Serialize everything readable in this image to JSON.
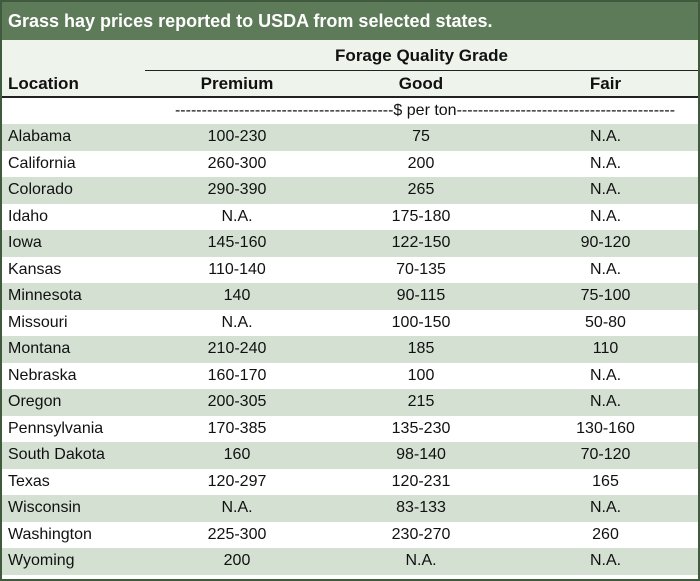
{
  "title": "Grass hay prices reported to USDA from selected states.",
  "header": {
    "group_label": "Forage Quality Grade",
    "location_label": "Location",
    "columns": [
      "Premium",
      "Good",
      "Fair"
    ],
    "units": "-----------------------------------------$ per ton-----------------------------------------"
  },
  "rows": [
    {
      "location": "Alabama",
      "premium": "100-230",
      "good": "75",
      "fair": "N.A."
    },
    {
      "location": "California",
      "premium": "260-300",
      "good": "200",
      "fair": "N.A."
    },
    {
      "location": "Colorado",
      "premium": "290-390",
      "good": "265",
      "fair": "N.A."
    },
    {
      "location": "Idaho",
      "premium": "N.A.",
      "good": "175-180",
      "fair": "N.A."
    },
    {
      "location": "Iowa",
      "premium": "145-160",
      "good": "122-150",
      "fair": "90-120"
    },
    {
      "location": "Kansas",
      "premium": "110-140",
      "good": "70-135",
      "fair": "N.A."
    },
    {
      "location": "Minnesota",
      "premium": "140",
      "good": "90-115",
      "fair": "75-100"
    },
    {
      "location": "Missouri",
      "premium": "N.A.",
      "good": "100-150",
      "fair": "50-80"
    },
    {
      "location": "Montana",
      "premium": "210-240",
      "good": "185",
      "fair": "110"
    },
    {
      "location": "Nebraska",
      "premium": "160-170",
      "good": "100",
      "fair": "N.A."
    },
    {
      "location": "Oregon",
      "premium": "200-305",
      "good": "215",
      "fair": "N.A."
    },
    {
      "location": "Pennsylvania",
      "premium": "170-385",
      "good": "135-230",
      "fair": "130-160"
    },
    {
      "location": "South Dakota",
      "premium": "160",
      "good": "98-140",
      "fair": "70-120"
    },
    {
      "location": "Texas",
      "premium": "120-297",
      "good": "120-231",
      "fair": "165"
    },
    {
      "location": "Wisconsin",
      "premium": "N.A.",
      "good": "83-133",
      "fair": "N.A."
    },
    {
      "location": "Washington",
      "premium": "225-300",
      "good": "230-270",
      "fair": "260"
    },
    {
      "location": "Wyoming",
      "premium": "200",
      "good": "N.A.",
      "fair": "N.A."
    }
  ]
}
